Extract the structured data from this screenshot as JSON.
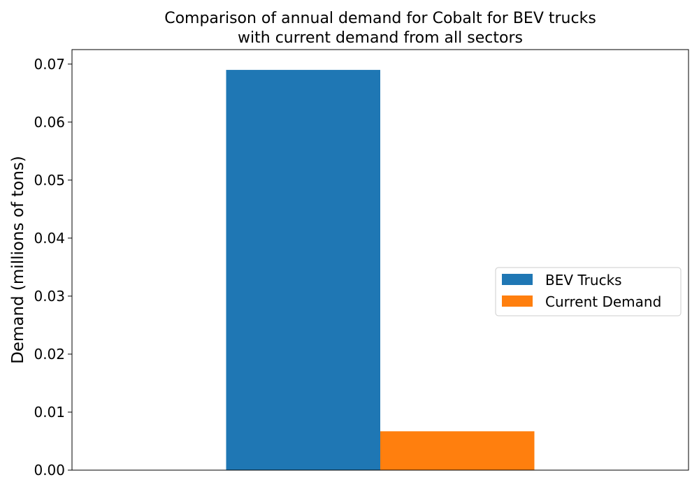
{
  "chart_data": {
    "type": "bar",
    "title": [
      "Comparison of annual demand for Cobalt for BEV trucks",
      "with current demand from all sectors"
    ],
    "xlabel": "",
    "ylabel": "Demand (millions of tons)",
    "ylim": [
      0,
      0.0725
    ],
    "yticks": [
      "0.00",
      "0.01",
      "0.02",
      "0.03",
      "0.04",
      "0.05",
      "0.06",
      "0.07"
    ],
    "categories": [
      ""
    ],
    "series": [
      {
        "name": "BEV Trucks",
        "values": [
          0.069
        ],
        "color": "#1f77b4"
      },
      {
        "name": "Current Demand",
        "values": [
          0.0067
        ],
        "color": "#ff7f0e"
      }
    ],
    "legend_position": "center-right",
    "grid": false
  }
}
